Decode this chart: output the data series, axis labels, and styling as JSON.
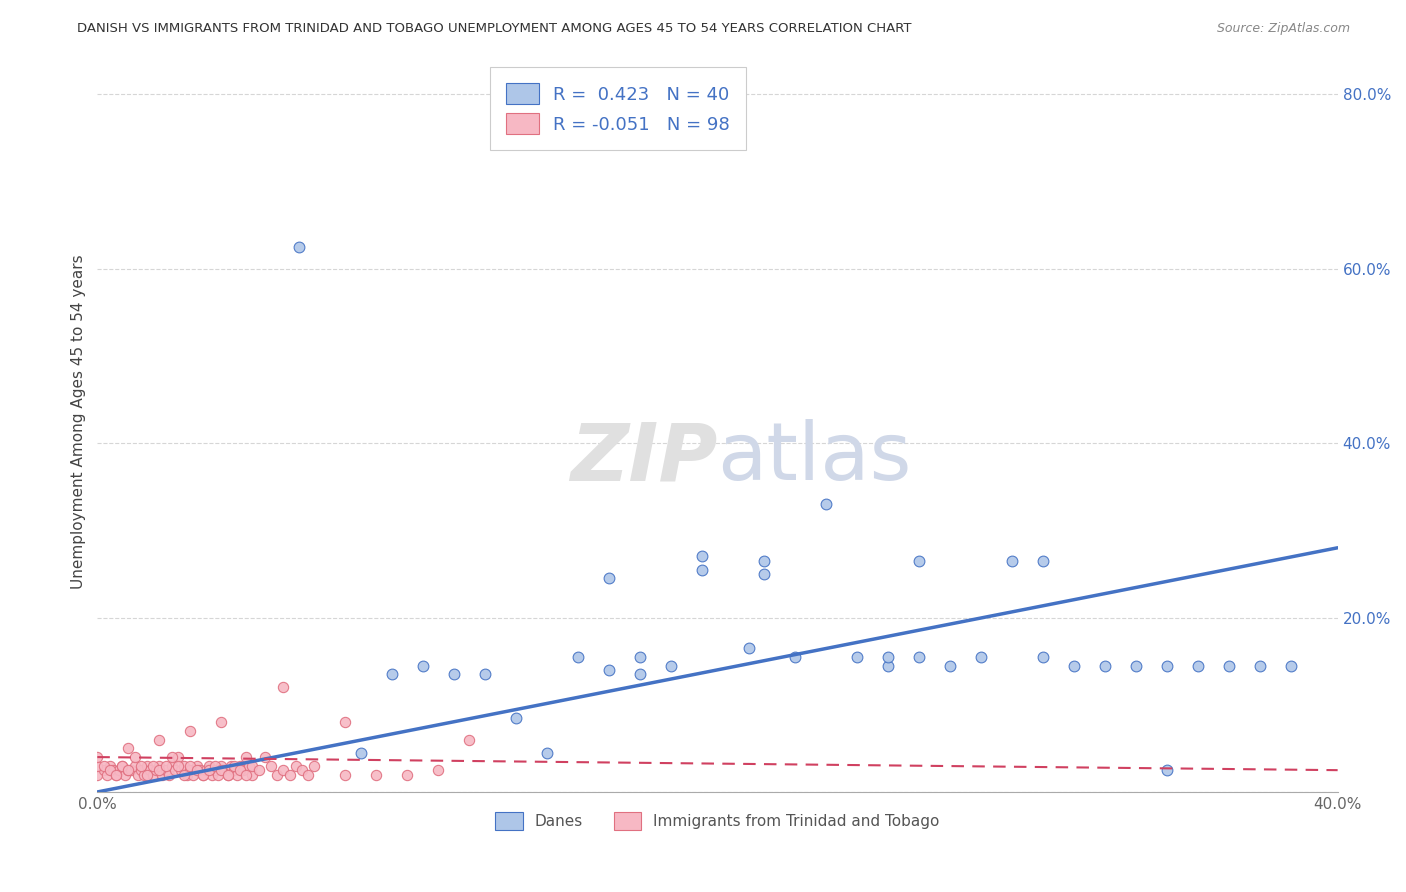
{
  "title": "DANISH VS IMMIGRANTS FROM TRINIDAD AND TOBAGO UNEMPLOYMENT AMONG AGES 45 TO 54 YEARS CORRELATION CHART",
  "source": "Source: ZipAtlas.com",
  "ylabel": "Unemployment Among Ages 45 to 54 years",
  "xlim": [
    0.0,
    0.4
  ],
  "ylim": [
    0.0,
    0.85
  ],
  "xticks": [
    0.0,
    0.05,
    0.1,
    0.15,
    0.2,
    0.25,
    0.3,
    0.35,
    0.4
  ],
  "xticklabels": [
    "0.0%",
    "",
    "",
    "",
    "",
    "",
    "",
    "",
    "40.0%"
  ],
  "yticks": [
    0.0,
    0.2,
    0.4,
    0.6,
    0.8
  ],
  "yticklabels": [
    "",
    "20.0%",
    "40.0%",
    "60.0%",
    "80.0%"
  ],
  "legend_label1": "Danes",
  "legend_label2": "Immigrants from Trinidad and Tobago",
  "r1": 0.423,
  "n1": 40,
  "r2": -0.051,
  "n2": 98,
  "color_danes_fill": "#aec6e8",
  "color_danes_edge": "#4472c4",
  "color_imm_fill": "#f7b8c4",
  "color_imm_edge": "#e07080",
  "color_line_danes": "#4472c4",
  "color_line_imm": "#d04060",
  "watermark_color": "#e8e8e8",
  "background_color": "#ffffff",
  "grid_color": "#cccccc",
  "tick_color_y": "#4472c4",
  "tick_color_x": "#666666",
  "danes_x": [
    0.165,
    0.195,
    0.215,
    0.195,
    0.235,
    0.215,
    0.245,
    0.265,
    0.21,
    0.175,
    0.165,
    0.185,
    0.175,
    0.285,
    0.305,
    0.295,
    0.255,
    0.225,
    0.315,
    0.325,
    0.335,
    0.345,
    0.345,
    0.255,
    0.265,
    0.275,
    0.155,
    0.105,
    0.115,
    0.125,
    0.135,
    0.145,
    0.095,
    0.085,
    0.355,
    0.365,
    0.375,
    0.385,
    0.305,
    0.065
  ],
  "danes_y": [
    0.245,
    0.255,
    0.25,
    0.27,
    0.33,
    0.265,
    0.155,
    0.155,
    0.165,
    0.155,
    0.14,
    0.145,
    0.135,
    0.155,
    0.155,
    0.265,
    0.145,
    0.155,
    0.145,
    0.145,
    0.145,
    0.145,
    0.025,
    0.155,
    0.265,
    0.145,
    0.155,
    0.145,
    0.135,
    0.135,
    0.085,
    0.045,
    0.135,
    0.045,
    0.145,
    0.145,
    0.145,
    0.145,
    0.265,
    0.625
  ],
  "imm_x": [
    0.0,
    0.002,
    0.003,
    0.004,
    0.005,
    0.006,
    0.007,
    0.008,
    0.009,
    0.01,
    0.011,
    0.012,
    0.013,
    0.014,
    0.015,
    0.016,
    0.017,
    0.018,
    0.019,
    0.02,
    0.021,
    0.022,
    0.023,
    0.024,
    0.025,
    0.026,
    0.027,
    0.028,
    0.029,
    0.03,
    0.031,
    0.032,
    0.033,
    0.034,
    0.035,
    0.036,
    0.037,
    0.038,
    0.039,
    0.04,
    0.041,
    0.042,
    0.043,
    0.044,
    0.045,
    0.046,
    0.047,
    0.048,
    0.049,
    0.05,
    0.0,
    0.002,
    0.004,
    0.006,
    0.008,
    0.01,
    0.012,
    0.014,
    0.016,
    0.018,
    0.02,
    0.022,
    0.024,
    0.026,
    0.028,
    0.03,
    0.032,
    0.034,
    0.036,
    0.038,
    0.04,
    0.042,
    0.044,
    0.046,
    0.048,
    0.05,
    0.052,
    0.054,
    0.056,
    0.058,
    0.06,
    0.062,
    0.064,
    0.066,
    0.068,
    0.07,
    0.08,
    0.09,
    0.1,
    0.11,
    0.04,
    0.06,
    0.08,
    0.12,
    0.0,
    0.01,
    0.02,
    0.03
  ],
  "imm_y": [
    0.02,
    0.025,
    0.02,
    0.03,
    0.025,
    0.02,
    0.025,
    0.03,
    0.02,
    0.025,
    0.025,
    0.03,
    0.02,
    0.025,
    0.02,
    0.03,
    0.025,
    0.02,
    0.025,
    0.03,
    0.02,
    0.025,
    0.02,
    0.03,
    0.025,
    0.04,
    0.025,
    0.03,
    0.02,
    0.025,
    0.02,
    0.03,
    0.025,
    0.02,
    0.025,
    0.03,
    0.02,
    0.025,
    0.02,
    0.03,
    0.025,
    0.02,
    0.03,
    0.025,
    0.02,
    0.03,
    0.025,
    0.04,
    0.03,
    0.02,
    0.03,
    0.03,
    0.025,
    0.02,
    0.03,
    0.025,
    0.04,
    0.03,
    0.02,
    0.03,
    0.025,
    0.03,
    0.04,
    0.03,
    0.02,
    0.03,
    0.025,
    0.02,
    0.025,
    0.03,
    0.025,
    0.02,
    0.03,
    0.025,
    0.02,
    0.03,
    0.025,
    0.04,
    0.03,
    0.02,
    0.025,
    0.02,
    0.03,
    0.025,
    0.02,
    0.03,
    0.02,
    0.02,
    0.02,
    0.025,
    0.08,
    0.12,
    0.08,
    0.06,
    0.04,
    0.05,
    0.06,
    0.07
  ],
  "danes_line_x": [
    0.0,
    0.4
  ],
  "danes_line_y": [
    0.0,
    0.28
  ],
  "imm_line_x": [
    0.0,
    0.4
  ],
  "imm_line_y": [
    0.04,
    0.025
  ]
}
